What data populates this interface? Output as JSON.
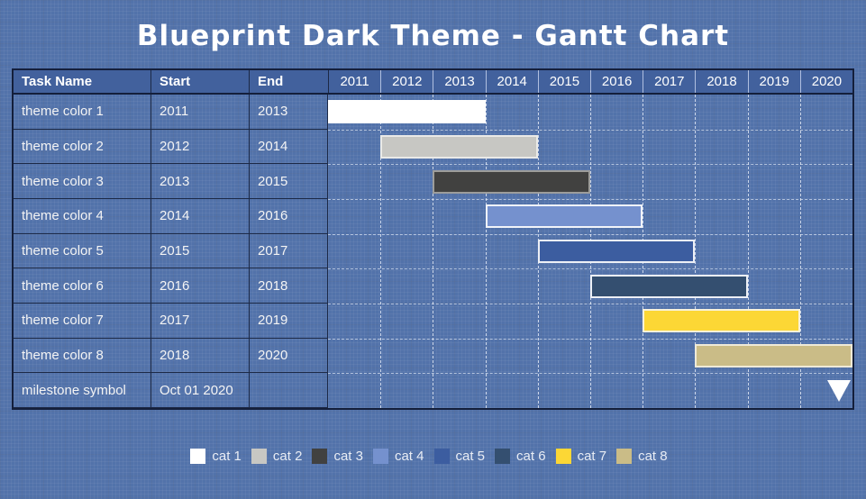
{
  "page": {
    "title": "Blueprint Dark Theme - Gantt Chart"
  },
  "colors": {
    "background": "#5272AA",
    "header_bg": "#42619D",
    "border_dark": "#141F3B",
    "grid_dash": "#F4F8FF",
    "text": "#FFFFFF"
  },
  "table": {
    "columns": [
      "Task Name",
      "Start",
      "End"
    ],
    "years": [
      "2011",
      "2012",
      "2013",
      "2014",
      "2015",
      "2016",
      "2017",
      "2018",
      "2019",
      "2020"
    ],
    "rows": [
      {
        "name": "theme color 1",
        "start": "2011",
        "end": "2013"
      },
      {
        "name": "theme color 2",
        "start": "2012",
        "end": "2014"
      },
      {
        "name": "theme color 3",
        "start": "2013",
        "end": "2015"
      },
      {
        "name": "theme color 4",
        "start": "2014",
        "end": "2016"
      },
      {
        "name": "theme color 5",
        "start": "2015",
        "end": "2017"
      },
      {
        "name": "theme color 6",
        "start": "2016",
        "end": "2018"
      },
      {
        "name": "theme color 7",
        "start": "2017",
        "end": "2019"
      },
      {
        "name": "theme color 8",
        "start": "2018",
        "end": "2020"
      },
      {
        "name": "milestone symbol",
        "start": "Oct 01 2020",
        "end": ""
      }
    ]
  },
  "chart_data": {
    "type": "gantt",
    "title": "Blueprint Dark Theme - Gantt Chart",
    "x_axis": {
      "year_min": 2011,
      "year_max": 2020,
      "tick_labels": [
        "2011",
        "2012",
        "2013",
        "2014",
        "2015",
        "2016",
        "2017",
        "2018",
        "2019",
        "2020"
      ]
    },
    "tasks": [
      {
        "name": "theme color 1",
        "category": "cat 1",
        "start": 2011,
        "end": 2013,
        "color": "#FFFFFF",
        "border": "#FFFFFF"
      },
      {
        "name": "theme color 2",
        "category": "cat 2",
        "start": 2012,
        "end": 2014,
        "color": "#C7C7C3",
        "border": "#EAEAE7"
      },
      {
        "name": "theme color 3",
        "category": "cat 3",
        "start": 2013,
        "end": 2015,
        "color": "#414140",
        "border": "#9D9D9B"
      },
      {
        "name": "theme color 4",
        "category": "cat 4",
        "start": 2014,
        "end": 2016,
        "color": "#7591CE",
        "border": "#F2F4F9"
      },
      {
        "name": "theme color 5",
        "category": "cat 5",
        "start": 2015,
        "end": 2017,
        "color": "#3C5DA0",
        "border": "#EDF0F6"
      },
      {
        "name": "theme color 6",
        "category": "cat 6",
        "start": 2016,
        "end": 2018,
        "color": "#344F70",
        "border": "#EDF0F6"
      },
      {
        "name": "theme color 7",
        "category": "cat 7",
        "start": 2017,
        "end": 2019,
        "color": "#FCD735",
        "border": "#F8F2DA"
      },
      {
        "name": "theme color 8",
        "category": "cat 8",
        "start": 2018,
        "end": 2020,
        "color": "#CABC87",
        "border": "#EFEAD8"
      }
    ],
    "milestone": {
      "name": "milestone symbol",
      "date_label": "Oct 01 2020",
      "year": 2020,
      "month": 10,
      "day": 1,
      "color": "#FFFFFF",
      "shape": "triangle-down"
    },
    "legend_position": "bottom"
  },
  "legend": {
    "items": [
      {
        "label": "cat 1",
        "color": "#FFFFFF"
      },
      {
        "label": "cat 2",
        "color": "#C7C7C3"
      },
      {
        "label": "cat 3",
        "color": "#414140"
      },
      {
        "label": "cat 4",
        "color": "#7591CE"
      },
      {
        "label": "cat 5",
        "color": "#3C5DA0"
      },
      {
        "label": "cat 6",
        "color": "#344F70"
      },
      {
        "label": "cat 7",
        "color": "#FCD735"
      },
      {
        "label": "cat 8",
        "color": "#CABC87"
      }
    ]
  }
}
